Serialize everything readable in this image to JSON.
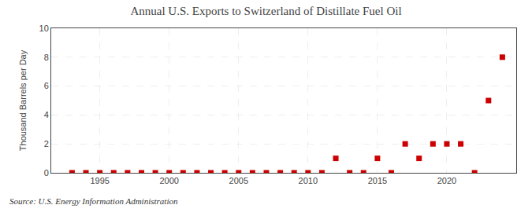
{
  "chart_data": {
    "type": "scatter",
    "title": "Annual U.S. Exports to Switzerland of Distillate Fuel Oil",
    "ylabel": "Thousand Barrels per Day",
    "annotations": [
      "Source: U.S. Energy Information Administration"
    ],
    "x": [
      1993,
      1994,
      1995,
      1996,
      1997,
      1998,
      1999,
      2000,
      2001,
      2002,
      2003,
      2004,
      2005,
      2006,
      2007,
      2008,
      2009,
      2010,
      2011,
      2012,
      2013,
      2014,
      2015,
      2016,
      2017,
      2018,
      2019,
      2020,
      2021,
      2022,
      2023,
      2024
    ],
    "values": [
      0,
      0,
      0,
      0,
      0,
      0,
      0,
      0,
      0,
      0,
      0,
      0,
      0,
      0,
      0,
      0,
      0,
      0,
      0,
      1,
      0,
      0,
      1,
      0,
      2,
      1,
      2,
      2,
      2,
      0,
      5,
      8
    ],
    "color": "#cc0000",
    "marker": "square",
    "xlim": [
      1991.5,
      2025
    ],
    "ylim": [
      0,
      10
    ],
    "xticks": [
      1995,
      2000,
      2005,
      2010,
      2015,
      2020
    ],
    "yticks": [
      0,
      2,
      4,
      6,
      8,
      10
    ],
    "grid": true
  }
}
